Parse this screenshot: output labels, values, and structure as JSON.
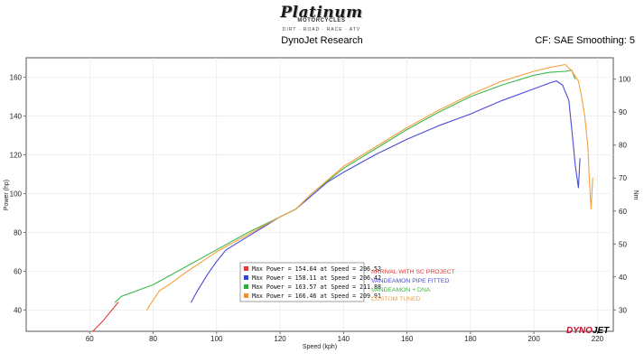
{
  "header": {
    "logo_name": "Platinum",
    "logo_sub": "MOTORCYCLES",
    "logo_tagline": "DIRT · ROAD · RACE · ATV",
    "title": "DynoJet Research",
    "right_text": "CF: SAE Smoothing: 5"
  },
  "brand": {
    "part1": "DYNO",
    "part2": "JET",
    "color1": "#c8102e",
    "color2": "#000000"
  },
  "chart_data": {
    "type": "line",
    "xlabel": "Speed (kph)",
    "ylabel": "Power (hp)",
    "y2label": "Nm",
    "xlim": [
      40,
      225
    ],
    "ylim": [
      29,
      170
    ],
    "y2lim": [
      23.5,
      106.5
    ],
    "xticks": [
      60,
      80,
      100,
      120,
      140,
      160,
      180,
      200,
      220
    ],
    "yticks": [
      40,
      60,
      80,
      100,
      120,
      140,
      160
    ],
    "y2ticks": [
      30,
      40,
      50,
      60,
      70,
      80,
      90,
      100
    ],
    "legend_position": "bottom-center",
    "legend": [
      "Max Power = 154.64 at Speed = 206.52",
      "Max Power = 158.11 at Speed = 206.42",
      "Max Power = 163.57 at Speed = 211.88",
      "Max Power = 166.46 at Speed = 209.91"
    ],
    "annotations": [
      "ARRIVAL WITH SC PROJECT",
      "VANDEAMON PIPE FITTED",
      "VANDEAMON + DNA",
      "CUSTOM TUNED"
    ],
    "series": [
      {
        "name": "ARRIVAL WITH SC PROJECT",
        "color": "#e53935",
        "x": [
          61,
          64,
          66,
          68,
          69
        ],
        "y": [
          29,
          34,
          38,
          42,
          44
        ]
      },
      {
        "name": "VANDEAMON PIPE FITTED",
        "color": "#4a4ad8",
        "x": [
          92,
          94,
          97,
          100,
          103,
          106,
          110,
          115,
          120,
          125,
          130,
          135,
          140,
          150,
          160,
          170,
          180,
          190,
          200,
          205,
          207,
          209,
          211,
          212,
          213,
          214,
          214.5
        ],
        "y": [
          44,
          50,
          58,
          65,
          71,
          74,
          78,
          83,
          88,
          92,
          99,
          106,
          111,
          120,
          128,
          135,
          141,
          148,
          154,
          157,
          158.1,
          156,
          148,
          132,
          115,
          103,
          118
        ]
      },
      {
        "name": "VANDEAMON + DNA",
        "color": "#3cb84a",
        "x": [
          68,
          70,
          75,
          80,
          90,
          100,
          110,
          120,
          125,
          130,
          140,
          150,
          160,
          170,
          180,
          190,
          200,
          205,
          210,
          211.9,
          213
        ],
        "y": [
          44,
          47,
          50,
          53,
          62,
          71,
          80,
          88,
          92,
          100,
          113,
          123,
          133,
          142,
          150,
          156,
          161,
          162.5,
          163,
          163.6,
          159
        ]
      },
      {
        "name": "CUSTOM TUNED",
        "color": "#f5a040",
        "x": [
          78,
          80,
          82,
          85,
          90,
          100,
          110,
          120,
          125,
          130,
          140,
          150,
          160,
          170,
          180,
          190,
          200,
          205,
          209.9,
          212,
          214,
          215,
          216,
          217,
          217.5,
          218,
          218.5
        ],
        "y": [
          40,
          45,
          50,
          53,
          59,
          70,
          79,
          88,
          92,
          100,
          114,
          124,
          134,
          143,
          151,
          158,
          163,
          165,
          166.5,
          163,
          158,
          150,
          140,
          124,
          106,
          92,
          108
        ]
      }
    ]
  }
}
